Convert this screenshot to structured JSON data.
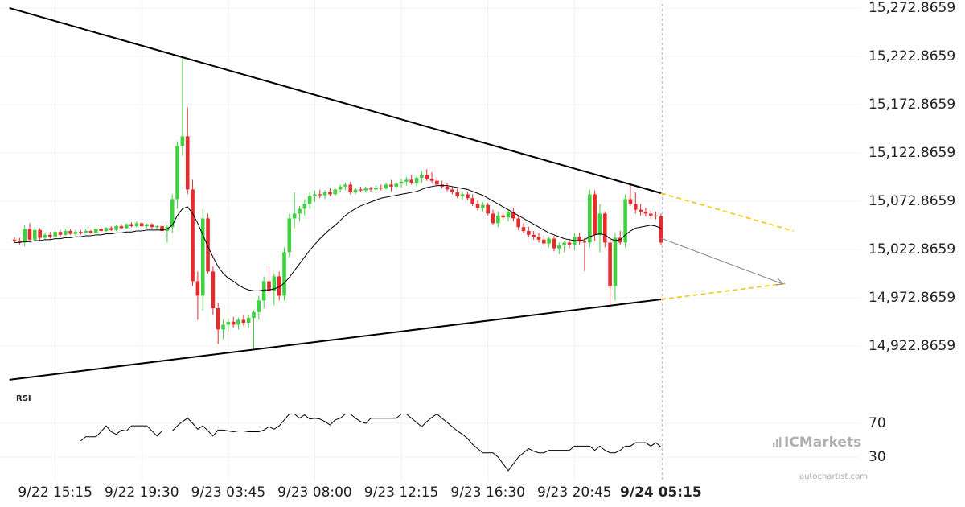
{
  "chart_data": {
    "type": "candlestick",
    "categories": [
      null,
      null,
      null,
      null,
      null,
      null,
      null,
      null,
      "9/22 15:15",
      null,
      null,
      null,
      null,
      null,
      null,
      null,
      null,
      null,
      null,
      null,
      null,
      null,
      null,
      null,
      null,
      "9/22 19:30",
      null,
      null,
      null,
      null,
      null,
      null,
      null,
      null,
      null,
      null,
      null,
      null,
      null,
      null,
      null,
      null,
      "9/23 03:45",
      null,
      null,
      null,
      null,
      null,
      null,
      null,
      null,
      null,
      null,
      null,
      null,
      null,
      null,
      null,
      null,
      "9/23 08:00",
      null,
      null,
      null,
      null,
      null,
      null,
      null,
      null,
      null,
      null,
      null,
      null,
      null,
      null,
      null,
      null,
      "9/23 12:15",
      null,
      null,
      null,
      null,
      null,
      null,
      null,
      null,
      null,
      null,
      null,
      null,
      null,
      null,
      null,
      null,
      "9/23 16:30",
      null,
      null,
      null,
      null,
      null,
      null,
      null,
      null,
      null,
      null,
      null,
      null,
      null,
      null,
      null,
      null,
      "9/23 20:45",
      null,
      null,
      null,
      null,
      null,
      null,
      null,
      null,
      null,
      null,
      null,
      null,
      null,
      null,
      null,
      null,
      "9/24 05:15"
    ],
    "ohlc": [
      [
        15033,
        15036,
        15030,
        15032
      ],
      [
        15032,
        15035,
        15028,
        15030
      ],
      [
        15030,
        15048,
        15026,
        15044
      ],
      [
        15044,
        15050,
        15030,
        15033
      ],
      [
        15033,
        15046,
        15031,
        15043
      ],
      [
        15043,
        15045,
        15032,
        15035
      ],
      [
        15035,
        15040,
        15033,
        15038
      ],
      [
        15038,
        15041,
        15034,
        15036
      ],
      [
        15036,
        15042,
        15035,
        15041
      ],
      [
        15041,
        15043,
        15036,
        15038
      ],
      [
        15038,
        15044,
        15037,
        15042
      ],
      [
        15042,
        15044,
        15038,
        15039
      ],
      [
        15039,
        15043,
        15037,
        15041
      ],
      [
        15041,
        15043,
        15038,
        15040
      ],
      [
        15040,
        15044,
        15039,
        15042
      ],
      [
        15042,
        15043,
        15039,
        15040
      ],
      [
        15040,
        15045,
        15039,
        15044
      ],
      [
        15044,
        15046,
        15041,
        15042
      ],
      [
        15042,
        15046,
        15041,
        15045
      ],
      [
        15045,
        15047,
        15042,
        15043
      ],
      [
        15043,
        15048,
        15042,
        15047
      ],
      [
        15047,
        15049,
        15044,
        15045
      ],
      [
        15045,
        15050,
        15044,
        15049
      ],
      [
        15049,
        15051,
        15046,
        15047
      ],
      [
        15047,
        15052,
        15046,
        15050
      ],
      [
        15050,
        15051,
        15046,
        15047
      ],
      [
        15047,
        15050,
        15045,
        15049
      ],
      [
        15049,
        15050,
        15044,
        15046
      ],
      [
        15046,
        15048,
        15043,
        15047
      ],
      [
        15047,
        15050,
        15040,
        15042
      ],
      [
        15042,
        15048,
        15030,
        15046
      ],
      [
        15046,
        15080,
        15040,
        15075
      ],
      [
        15075,
        15135,
        15065,
        15130
      ],
      [
        15130,
        15222,
        15120,
        15140
      ],
      [
        15140,
        15170,
        15080,
        15085
      ],
      [
        15085,
        15095,
        14985,
        14990
      ],
      [
        14990,
        15000,
        14950,
        14975
      ],
      [
        14975,
        15065,
        14960,
        15055
      ],
      [
        15055,
        15060,
        14998,
        15000
      ],
      [
        15000,
        15005,
        14955,
        14962
      ],
      [
        14962,
        14968,
        14925,
        14940
      ],
      [
        14940,
        14950,
        14930,
        14945
      ],
      [
        14945,
        14952,
        14938,
        14948
      ],
      [
        14948,
        14953,
        14942,
        14945
      ],
      [
        14945,
        14952,
        14940,
        14950
      ],
      [
        14950,
        14955,
        14944,
        14947
      ],
      [
        14947,
        14955,
        14942,
        14952
      ],
      [
        14952,
        14960,
        14920,
        14958
      ],
      [
        14958,
        14975,
        14950,
        14970
      ],
      [
        14970,
        14995,
        14962,
        14990
      ],
      [
        14990,
        15005,
        14975,
        14980
      ],
      [
        14980,
        14998,
        14965,
        14995
      ],
      [
        14995,
        15000,
        14970,
        14975
      ],
      [
        14975,
        15025,
        14970,
        15020
      ],
      [
        15020,
        15060,
        15015,
        15055
      ],
      [
        15055,
        15082,
        15045,
        15060
      ],
      [
        15060,
        15068,
        15052,
        15065
      ],
      [
        15065,
        15075,
        15058,
        15070
      ],
      [
        15070,
        15082,
        15065,
        15078
      ],
      [
        15078,
        15084,
        15072,
        15080
      ],
      [
        15080,
        15085,
        15076,
        15079
      ],
      [
        15079,
        15084,
        15075,
        15082
      ],
      [
        15082,
        15086,
        15078,
        15080
      ],
      [
        15080,
        15087,
        15078,
        15085
      ],
      [
        15085,
        15090,
        15082,
        15088
      ],
      [
        15088,
        15092,
        15084,
        15090
      ],
      [
        15090,
        15093,
        15080,
        15082
      ],
      [
        15082,
        15087,
        15080,
        15085
      ],
      [
        15085,
        15088,
        15082,
        15084
      ],
      [
        15084,
        15088,
        15082,
        15086
      ],
      [
        15086,
        15088,
        15083,
        15085
      ],
      [
        15085,
        15089,
        15083,
        15087
      ],
      [
        15087,
        15090,
        15084,
        15086
      ],
      [
        15086,
        15092,
        15085,
        15090
      ],
      [
        15090,
        15095,
        15083,
        15088
      ],
      [
        15088,
        15093,
        15085,
        15091
      ],
      [
        15091,
        15096,
        15087,
        15093
      ],
      [
        15093,
        15098,
        15089,
        15095
      ],
      [
        15095,
        15100,
        15090,
        15092
      ],
      [
        15092,
        15099,
        15088,
        15097
      ],
      [
        15097,
        15104,
        15092,
        15100
      ],
      [
        15100,
        15106,
        15094,
        15096
      ],
      [
        15096,
        15103,
        15091,
        15094
      ],
      [
        15094,
        15098,
        15088,
        15090
      ],
      [
        15090,
        15094,
        15086,
        15088
      ],
      [
        15088,
        15092,
        15083,
        15085
      ],
      [
        15085,
        15088,
        15080,
        15082
      ],
      [
        15082,
        15086,
        15076,
        15078
      ],
      [
        15078,
        15082,
        15074,
        15080
      ],
      [
        15080,
        15083,
        15074,
        15076
      ],
      [
        15076,
        15080,
        15068,
        15070
      ],
      [
        15070,
        15074,
        15063,
        15066
      ],
      [
        15066,
        15072,
        15062,
        15069
      ],
      [
        15069,
        15071,
        15058,
        15060
      ],
      [
        15060,
        15064,
        15048,
        15050
      ],
      [
        15050,
        15062,
        15046,
        15058
      ],
      [
        15058,
        15062,
        15054,
        15056
      ],
      [
        15056,
        15064,
        15052,
        15062
      ],
      [
        15062,
        15066,
        15052,
        15055
      ],
      [
        15055,
        15058,
        15043,
        15046
      ],
      [
        15046,
        15050,
        15040,
        15042
      ],
      [
        15042,
        15046,
        15036,
        15038
      ],
      [
        15038,
        15042,
        15033,
        15036
      ],
      [
        15036,
        15040,
        15030,
        15033
      ],
      [
        15033,
        15037,
        15026,
        15029
      ],
      [
        15029,
        15036,
        15025,
        15034
      ],
      [
        15034,
        15037,
        15021,
        15024
      ],
      [
        15024,
        15030,
        15018,
        15027
      ],
      [
        15027,
        15032,
        15020,
        15030
      ],
      [
        15030,
        15034,
        15024,
        15028
      ],
      [
        15028,
        15040,
        15022,
        15036
      ],
      [
        15036,
        15040,
        15028,
        15031
      ],
      [
        15031,
        15035,
        15000,
        15030
      ],
      [
        15030,
        15085,
        15025,
        15080
      ],
      [
        15080,
        15084,
        15032,
        15038
      ],
      [
        15038,
        15070,
        15020,
        15060
      ],
      [
        15060,
        15062,
        15025,
        15030
      ],
      [
        15030,
        15034,
        14966,
        14985
      ],
      [
        14985,
        15040,
        14970,
        15035
      ],
      [
        15035,
        15042,
        15028,
        15030
      ],
      [
        15030,
        15080,
        15025,
        15075
      ],
      [
        15075,
        15090,
        15068,
        15070
      ],
      [
        15070,
        15082,
        15060,
        15064
      ],
      [
        15064,
        15070,
        15058,
        15062
      ],
      [
        15062,
        15066,
        15057,
        15060
      ],
      [
        15060,
        15063,
        15055,
        15058
      ],
      [
        15058,
        15062,
        15054,
        15057
      ],
      [
        15057,
        15060,
        15028,
        15030
      ]
    ],
    "up_color": "#3fd13f",
    "down_color": "#e52b2b",
    "ylim": [
      14877,
      15281.2
    ],
    "yticks": [
      {
        "value": 15272.8659,
        "label": "15,272.8659"
      },
      {
        "value": 15222.8659,
        "label": "15,222.8659"
      },
      {
        "value": 15172.8659,
        "label": "15,172.8659"
      },
      {
        "value": 15122.8659,
        "label": "15,122.8659"
      },
      {
        "value": 15072.8659,
        "label": "15,072.8659"
      },
      {
        "value": 15022.8659,
        "label": "15,022.8659"
      },
      {
        "value": 14972.8659,
        "label": "14,972.8659"
      },
      {
        "value": 14922.8659,
        "label": "14,922.8659"
      }
    ],
    "grid": true,
    "moving_average": {
      "color": "#000000",
      "values": [
        15030,
        15030,
        15031,
        15031,
        15032,
        15032,
        15033,
        15033,
        15034,
        15034,
        15035,
        15035,
        15036,
        15036,
        15037,
        15037,
        15038,
        15038,
        15039,
        15039,
        15040,
        15040,
        15041,
        15041,
        15042,
        15042,
        15043,
        15043,
        15043,
        15043,
        15044,
        15048,
        15058,
        15065,
        15067,
        15060,
        15050,
        15038,
        15026,
        15015,
        15005,
        14998,
        14993,
        14990,
        14986,
        14983,
        14981,
        14980,
        14980,
        14981,
        14981,
        14982,
        14984,
        14988,
        14994,
        15001,
        15008,
        15015,
        15022,
        15028,
        15034,
        15039,
        15044,
        15048,
        15053,
        15058,
        15062,
        15065,
        15068,
        15070,
        15072,
        15074,
        15076,
        15077,
        15078,
        15079,
        15080,
        15081,
        15082,
        15083,
        15085,
        15087,
        15088,
        15089,
        15089,
        15089,
        15088,
        15087,
        15086,
        15085,
        15083,
        15081,
        15079,
        15076,
        15073,
        15070,
        15067,
        15064,
        15061,
        15058,
        15055,
        15052,
        15049,
        15046,
        15043,
        15040,
        15038,
        15036,
        15034,
        15033,
        15032,
        15032,
        15033,
        15036,
        15038,
        15039,
        15038,
        15034,
        15032,
        15033,
        15038,
        15042,
        15045,
        15046,
        15047,
        15048,
        15047,
        15045
      ]
    },
    "trend_lines": [
      {
        "color": "#000000",
        "dashed": false,
        "x": [
          -1,
          127
        ],
        "y": [
          15272.9,
          15081.2
        ]
      },
      {
        "color": "#000000",
        "dashed": false,
        "x": [
          -1,
          127
        ],
        "y": [
          14887.9,
          14971.2
        ]
      },
      {
        "color": "#f5c400",
        "dashed": true,
        "x": [
          127,
          153
        ],
        "y": [
          15081.2,
          15042.0
        ]
      },
      {
        "color": "#f5c400",
        "dashed": true,
        "x": [
          127,
          152
        ],
        "y": [
          14971.2,
          14987.9
        ]
      }
    ],
    "forecast": {
      "color": "#888888",
      "x": [
        127,
        151
      ],
      "y": [
        15034.5,
        14987.0
      ]
    },
    "rsi": {
      "title": "RSI",
      "color": "#000000",
      "ylim": [
        0,
        100
      ],
      "yticks": [
        70,
        30
      ],
      "values": [
        null,
        null,
        null,
        null,
        null,
        null,
        null,
        null,
        null,
        null,
        null,
        null,
        null,
        49,
        54,
        54,
        54,
        60,
        67,
        60,
        57,
        62,
        61,
        67,
        67,
        67,
        67,
        61,
        55,
        61,
        61,
        61,
        67,
        72,
        76,
        70,
        63,
        67,
        61,
        55,
        62,
        62,
        61,
        60,
        61,
        61,
        60,
        60,
        60,
        62,
        66,
        63,
        67,
        74,
        81,
        81,
        76,
        80,
        75,
        76,
        75,
        72,
        68,
        74,
        76,
        81,
        81,
        76,
        72,
        70,
        76,
        76,
        76,
        76,
        76,
        76,
        81,
        81,
        76,
        71,
        66,
        72,
        77,
        81,
        76,
        71,
        66,
        61,
        57,
        52,
        45,
        40,
        35,
        35,
        35,
        30,
        22,
        14,
        22,
        30,
        35,
        40,
        37,
        35,
        35,
        38,
        38,
        38,
        38,
        38,
        43,
        43,
        43,
        43,
        38,
        43,
        38,
        35,
        35,
        38,
        43,
        43,
        47,
        47,
        47,
        43,
        47,
        42
      ]
    },
    "branding": {
      "logo": "ICMarkets",
      "site": "autochartist.com"
    }
  }
}
